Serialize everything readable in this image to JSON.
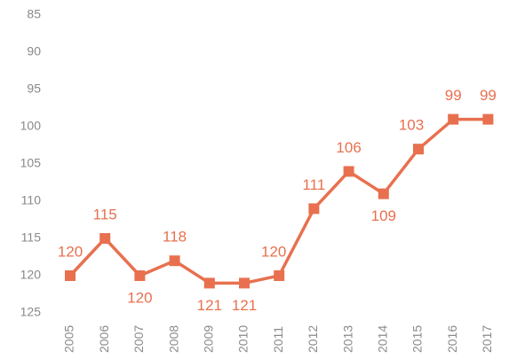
{
  "chart_data": {
    "type": "line",
    "categories": [
      "2005",
      "2006",
      "2007",
      "2008",
      "2009",
      "2010",
      "2011",
      "2012",
      "2013",
      "2014",
      "2015",
      "2016",
      "2017"
    ],
    "values": [
      120,
      115,
      120,
      118,
      121,
      121,
      120,
      111,
      106,
      109,
      103,
      99,
      99
    ],
    "color": "#e8704f",
    "ylim": [
      125,
      85
    ],
    "yticks": [
      85,
      90,
      95,
      100,
      105,
      110,
      115,
      120,
      125
    ],
    "grid": false
  }
}
